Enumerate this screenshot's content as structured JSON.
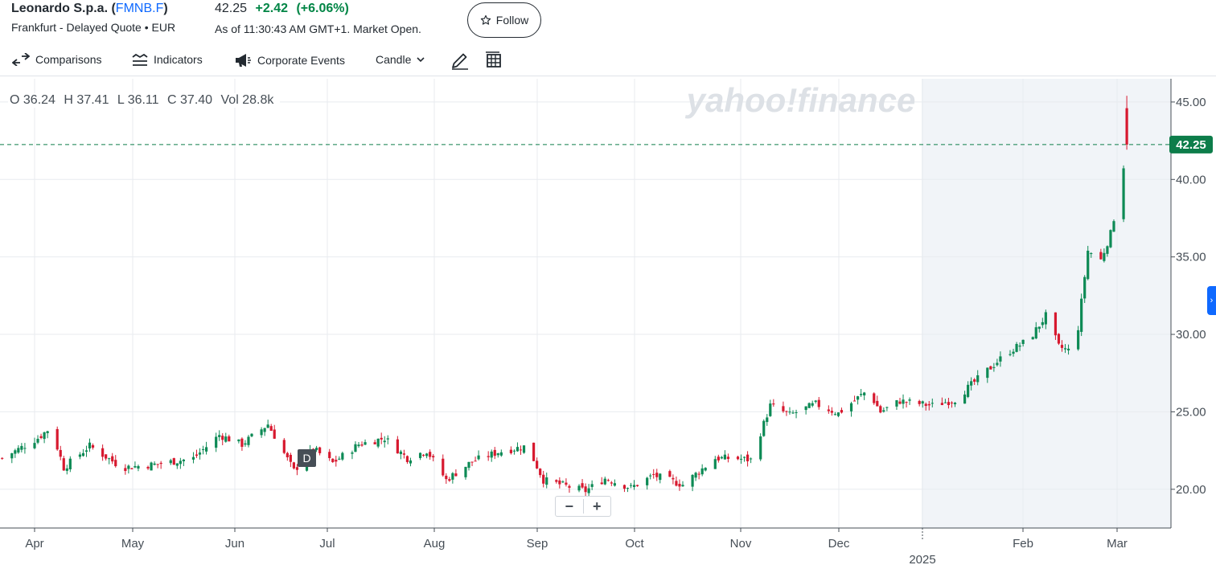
{
  "header": {
    "company": "Leonardo S.p.a.",
    "symbol": "FMNB.F",
    "exchange_line": "Frankfurt - Delayed Quote • EUR",
    "price": "42.25",
    "change": "+2.42",
    "change_pct": "(+6.06%)",
    "as_of": "As of 11:30:43 AM GMT+1. Market Open.",
    "follow_label": "Follow"
  },
  "toolbar": {
    "comparisons": "Comparisons",
    "indicators": "Indicators",
    "corporate_events": "Corporate Events",
    "chart_type": "Candle"
  },
  "ohlc": {
    "open_label": "O",
    "open": "36.24",
    "high_label": "H",
    "high": "37.41",
    "low_label": "L",
    "low": "36.11",
    "close_label": "C",
    "close": "37.40",
    "vol_label": "Vol",
    "vol": "28.8k"
  },
  "watermark": "yahoo!finance",
  "event_marker": "D",
  "colors": {
    "up": "#0d8a55",
    "down": "#d7192f",
    "price_tag": "#0d7d4a",
    "accent": "#0f69ff"
  },
  "chart_data": {
    "type": "candlestick",
    "y_range": [
      17.5,
      46.5
    ],
    "y_ticks": [
      "20.00",
      "25.00",
      "30.00",
      "35.00",
      "40.00",
      "45.00"
    ],
    "x_ticks": [
      "Apr",
      "May",
      "Jun",
      "Jul",
      "Aug",
      "Sep",
      "Oct",
      "Nov",
      "Dec",
      "2025",
      "Feb",
      "Mar"
    ],
    "year_label": "2025",
    "current_price": 42.25,
    "current_price_label": "42.25",
    "grid": true,
    "anchors": [
      {
        "date": "2024-03-22",
        "close": 22.0
      },
      {
        "date": "2024-04-02",
        "close": 23.3
      },
      {
        "date": "2024-04-06",
        "close": 24.0
      },
      {
        "date": "2024-04-10",
        "close": 21.4
      },
      {
        "date": "2024-04-18",
        "close": 22.8
      },
      {
        "date": "2024-04-28",
        "close": 21.4
      },
      {
        "date": "2024-05-08",
        "close": 21.6
      },
      {
        "date": "2024-05-20",
        "close": 22.0
      },
      {
        "date": "2024-05-28",
        "close": 23.5
      },
      {
        "date": "2024-06-04",
        "close": 22.9
      },
      {
        "date": "2024-06-12",
        "close": 24.2
      },
      {
        "date": "2024-06-20",
        "close": 21.2
      },
      {
        "date": "2024-06-26",
        "close": 22.6
      },
      {
        "date": "2024-07-02",
        "close": 21.7
      },
      {
        "date": "2024-07-10",
        "close": 22.9
      },
      {
        "date": "2024-07-18",
        "close": 23.3
      },
      {
        "date": "2024-07-25",
        "close": 22.0
      },
      {
        "date": "2024-07-31",
        "close": 22.5
      },
      {
        "date": "2024-08-06",
        "close": 20.6
      },
      {
        "date": "2024-08-14",
        "close": 21.8
      },
      {
        "date": "2024-08-22",
        "close": 22.4
      },
      {
        "date": "2024-08-31",
        "close": 22.8
      },
      {
        "date": "2024-09-05",
        "close": 20.6
      },
      {
        "date": "2024-09-14",
        "close": 20.1
      },
      {
        "date": "2024-09-18",
        "close": 19.9
      },
      {
        "date": "2024-09-24",
        "close": 20.7
      },
      {
        "date": "2024-10-02",
        "close": 20.1
      },
      {
        "date": "2024-10-09",
        "close": 20.9
      },
      {
        "date": "2024-10-18",
        "close": 20.3
      },
      {
        "date": "2024-10-28",
        "close": 22.0
      },
      {
        "date": "2024-11-03",
        "close": 22.0
      },
      {
        "date": "2024-11-08",
        "close": 21.9
      },
      {
        "date": "2024-11-14",
        "close": 25.4
      },
      {
        "date": "2024-11-20",
        "close": 24.8
      },
      {
        "date": "2024-11-28",
        "close": 25.5
      },
      {
        "date": "2024-12-05",
        "close": 24.9
      },
      {
        "date": "2024-12-14",
        "close": 26.4
      },
      {
        "date": "2024-12-18",
        "close": 25.0
      },
      {
        "date": "2024-12-24",
        "close": 25.7
      },
      {
        "date": "2025-01-03",
        "close": 25.4
      },
      {
        "date": "2025-01-10",
        "close": 25.8
      },
      {
        "date": "2025-01-18",
        "close": 27.3
      },
      {
        "date": "2025-01-26",
        "close": 28.8
      },
      {
        "date": "2025-02-02",
        "close": 29.7
      },
      {
        "date": "2025-02-07",
        "close": 31.2
      },
      {
        "date": "2025-02-11",
        "close": 29.2
      },
      {
        "date": "2025-02-16",
        "close": 28.8
      },
      {
        "date": "2025-02-20",
        "close": 35.4
      },
      {
        "date": "2025-02-24",
        "close": 34.8
      },
      {
        "date": "2025-02-27",
        "close": 36.5
      },
      {
        "date": "2025-03-02",
        "close": 39.5
      },
      {
        "date": "2025-03-04",
        "close": 42.25
      }
    ]
  }
}
